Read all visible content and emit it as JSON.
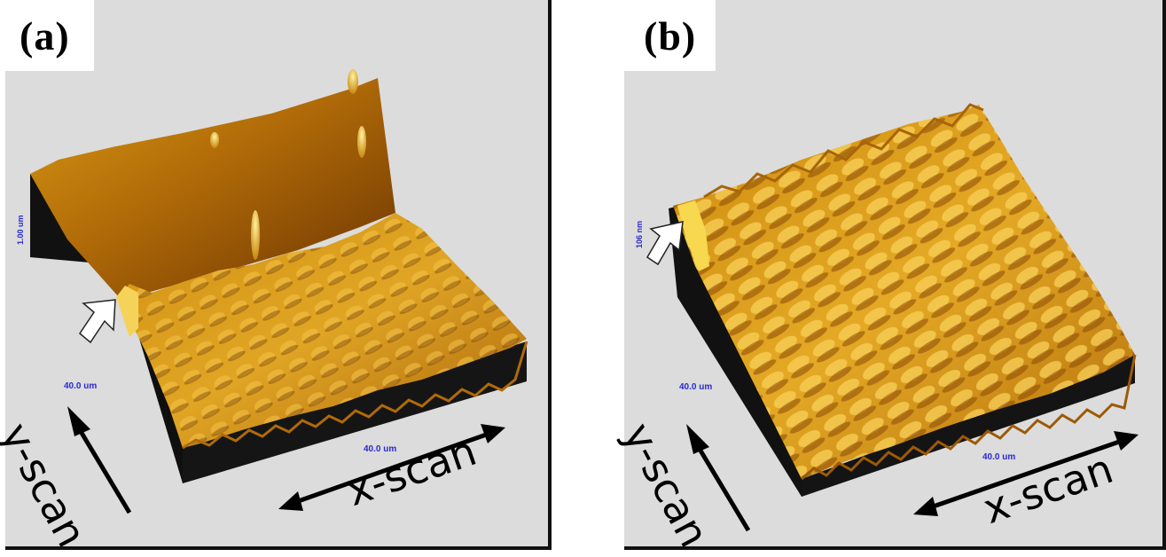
{
  "panels": [
    {
      "letter": "(a)",
      "z_scale": "1.00 um",
      "y_size": "40.0 um",
      "x_size": "40.0 um",
      "y_axis_label": "y-scan",
      "x_axis_label": "x-scan"
    },
    {
      "letter": "(b)",
      "z_scale": "106 nm",
      "y_size": "40.0 um",
      "x_size": "40.0 um",
      "y_axis_label": "y-scan",
      "x_axis_label": "x-scan"
    }
  ],
  "colors": {
    "background": "#dcdcdc",
    "surface_light": "#f2c030",
    "surface_dark": "#8a4a05",
    "base": "#111111",
    "scale_text": "#2a2ad0"
  }
}
